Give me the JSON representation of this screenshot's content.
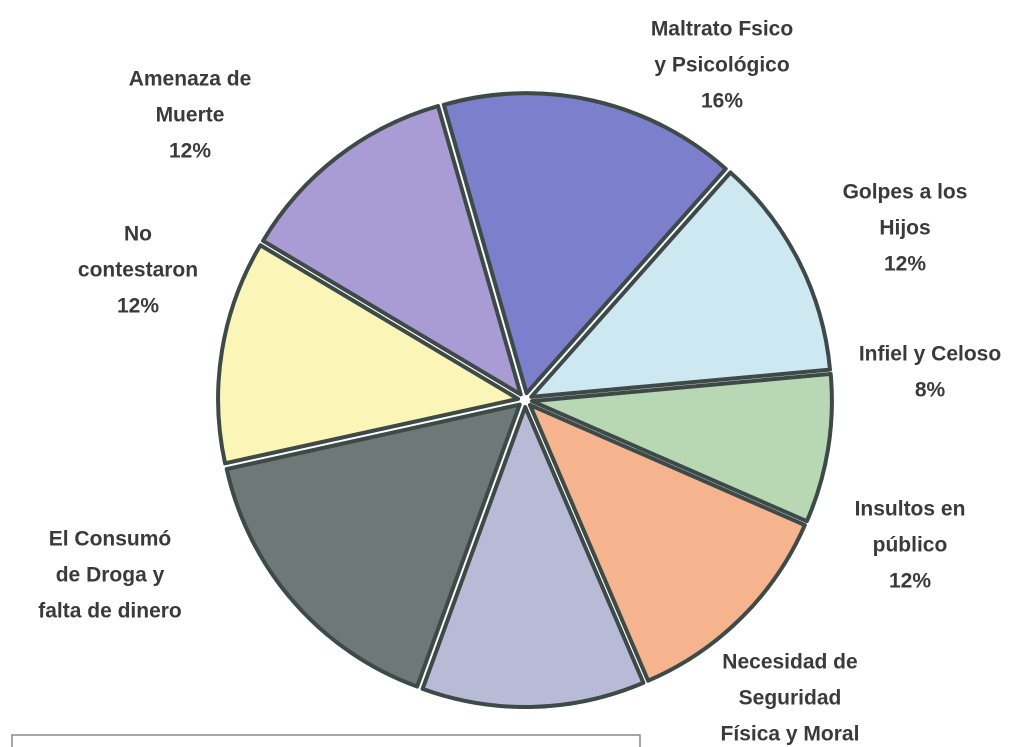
{
  "chart_data": {
    "type": "pie",
    "categories": [
      [
        "Maltrato Fsico",
        "y Psicológico"
      ],
      [
        "Golpes a los",
        "Hijos"
      ],
      [
        "Infiel y Celoso"
      ],
      [
        "Insultos en",
        "público"
      ],
      [
        "Necesidad de",
        "Seguridad",
        "Física y Moral"
      ],
      [
        "El Consumó",
        "de Droga y",
        "falta de dinero"
      ],
      [
        "No",
        "contestaron"
      ],
      [
        "Amenaza de",
        "Muerte"
      ]
    ],
    "values": [
      16,
      12,
      8,
      12,
      12,
      16,
      12,
      12
    ],
    "value_labels": [
      "16%",
      "12%",
      "8%",
      "12%",
      null,
      null,
      "12%",
      "12%"
    ],
    "colors": [
      "#7c80cc",
      "#cde8f0",
      "#b8d7b3",
      "#f5b38e",
      "#b8bbd6",
      "#6e7977",
      "#fbf5b8",
      "#a99bd3"
    ]
  }
}
